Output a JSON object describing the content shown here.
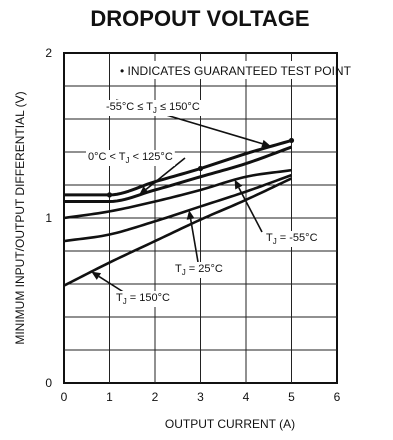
{
  "chart_data": {
    "type": "line",
    "title": "DROPOUT VOLTAGE",
    "xlabel": "OUTPUT CURRENT (A)",
    "ylabel": "MINIMUM INPUT/OUTPUT DIFFERENTIAL (V)",
    "xlim": [
      0,
      6
    ],
    "ylim": [
      0,
      2
    ],
    "x_ticks": [
      "0",
      "1",
      "2",
      "3",
      "4",
      "5",
      "6"
    ],
    "y_ticks": [
      "0",
      "1",
      "2"
    ],
    "grid": true,
    "note": "• INDICATES GUARANTEED TEST POINT",
    "series": [
      {
        "name": "-55°C ≤ TJ ≤ 150°C",
        "x": [
          0,
          1,
          2,
          3,
          4,
          5
        ],
        "y": [
          1.14,
          1.14,
          1.22,
          1.3,
          1.39,
          1.47
        ],
        "style": "heavy"
      },
      {
        "name": "0°C < TJ < 125°C",
        "x": [
          0,
          1,
          2,
          3,
          4,
          5
        ],
        "y": [
          1.1,
          1.1,
          1.17,
          1.25,
          1.33,
          1.43
        ],
        "style": "heavy"
      },
      {
        "name": "TJ = -55°C",
        "x": [
          0,
          1,
          2,
          3,
          4,
          5
        ],
        "y": [
          1.0,
          1.04,
          1.1,
          1.17,
          1.25,
          1.29
        ]
      },
      {
        "name": "TJ = 25°C",
        "x": [
          0,
          1,
          2,
          3,
          4,
          5
        ],
        "y": [
          0.86,
          0.9,
          0.98,
          1.07,
          1.16,
          1.26
        ]
      },
      {
        "name": "TJ = 150°C",
        "x": [
          0,
          1,
          2,
          3,
          4,
          5
        ],
        "y": [
          0.59,
          0.73,
          0.86,
          0.99,
          1.11,
          1.24
        ]
      }
    ],
    "guaranteed_points": [
      {
        "x": 1,
        "y": 1.14
      },
      {
        "x": 3,
        "y": 1.3
      },
      {
        "x": 5,
        "y": 1.47
      }
    ],
    "annotations": [
      {
        "text": "-55°C ≤ T",
        "sub": "J",
        "after": " ≤ 150°C",
        "series": 0,
        "target_x": 4.55
      },
      {
        "text": "0°C < T",
        "sub": "J",
        "after": " < 125°C",
        "series": 1,
        "target_x": 1.65
      },
      {
        "text": "T",
        "sub": "J",
        "after": " = -55°C",
        "series": 2,
        "target_x": 3.75
      },
      {
        "text": "T",
        "sub": "J",
        "after": " = 25°C",
        "series": 3,
        "target_x": 2.75
      },
      {
        "text": "T",
        "sub": "J",
        "after": " = 150°C",
        "series": 4,
        "target_x": 0.6
      }
    ]
  }
}
